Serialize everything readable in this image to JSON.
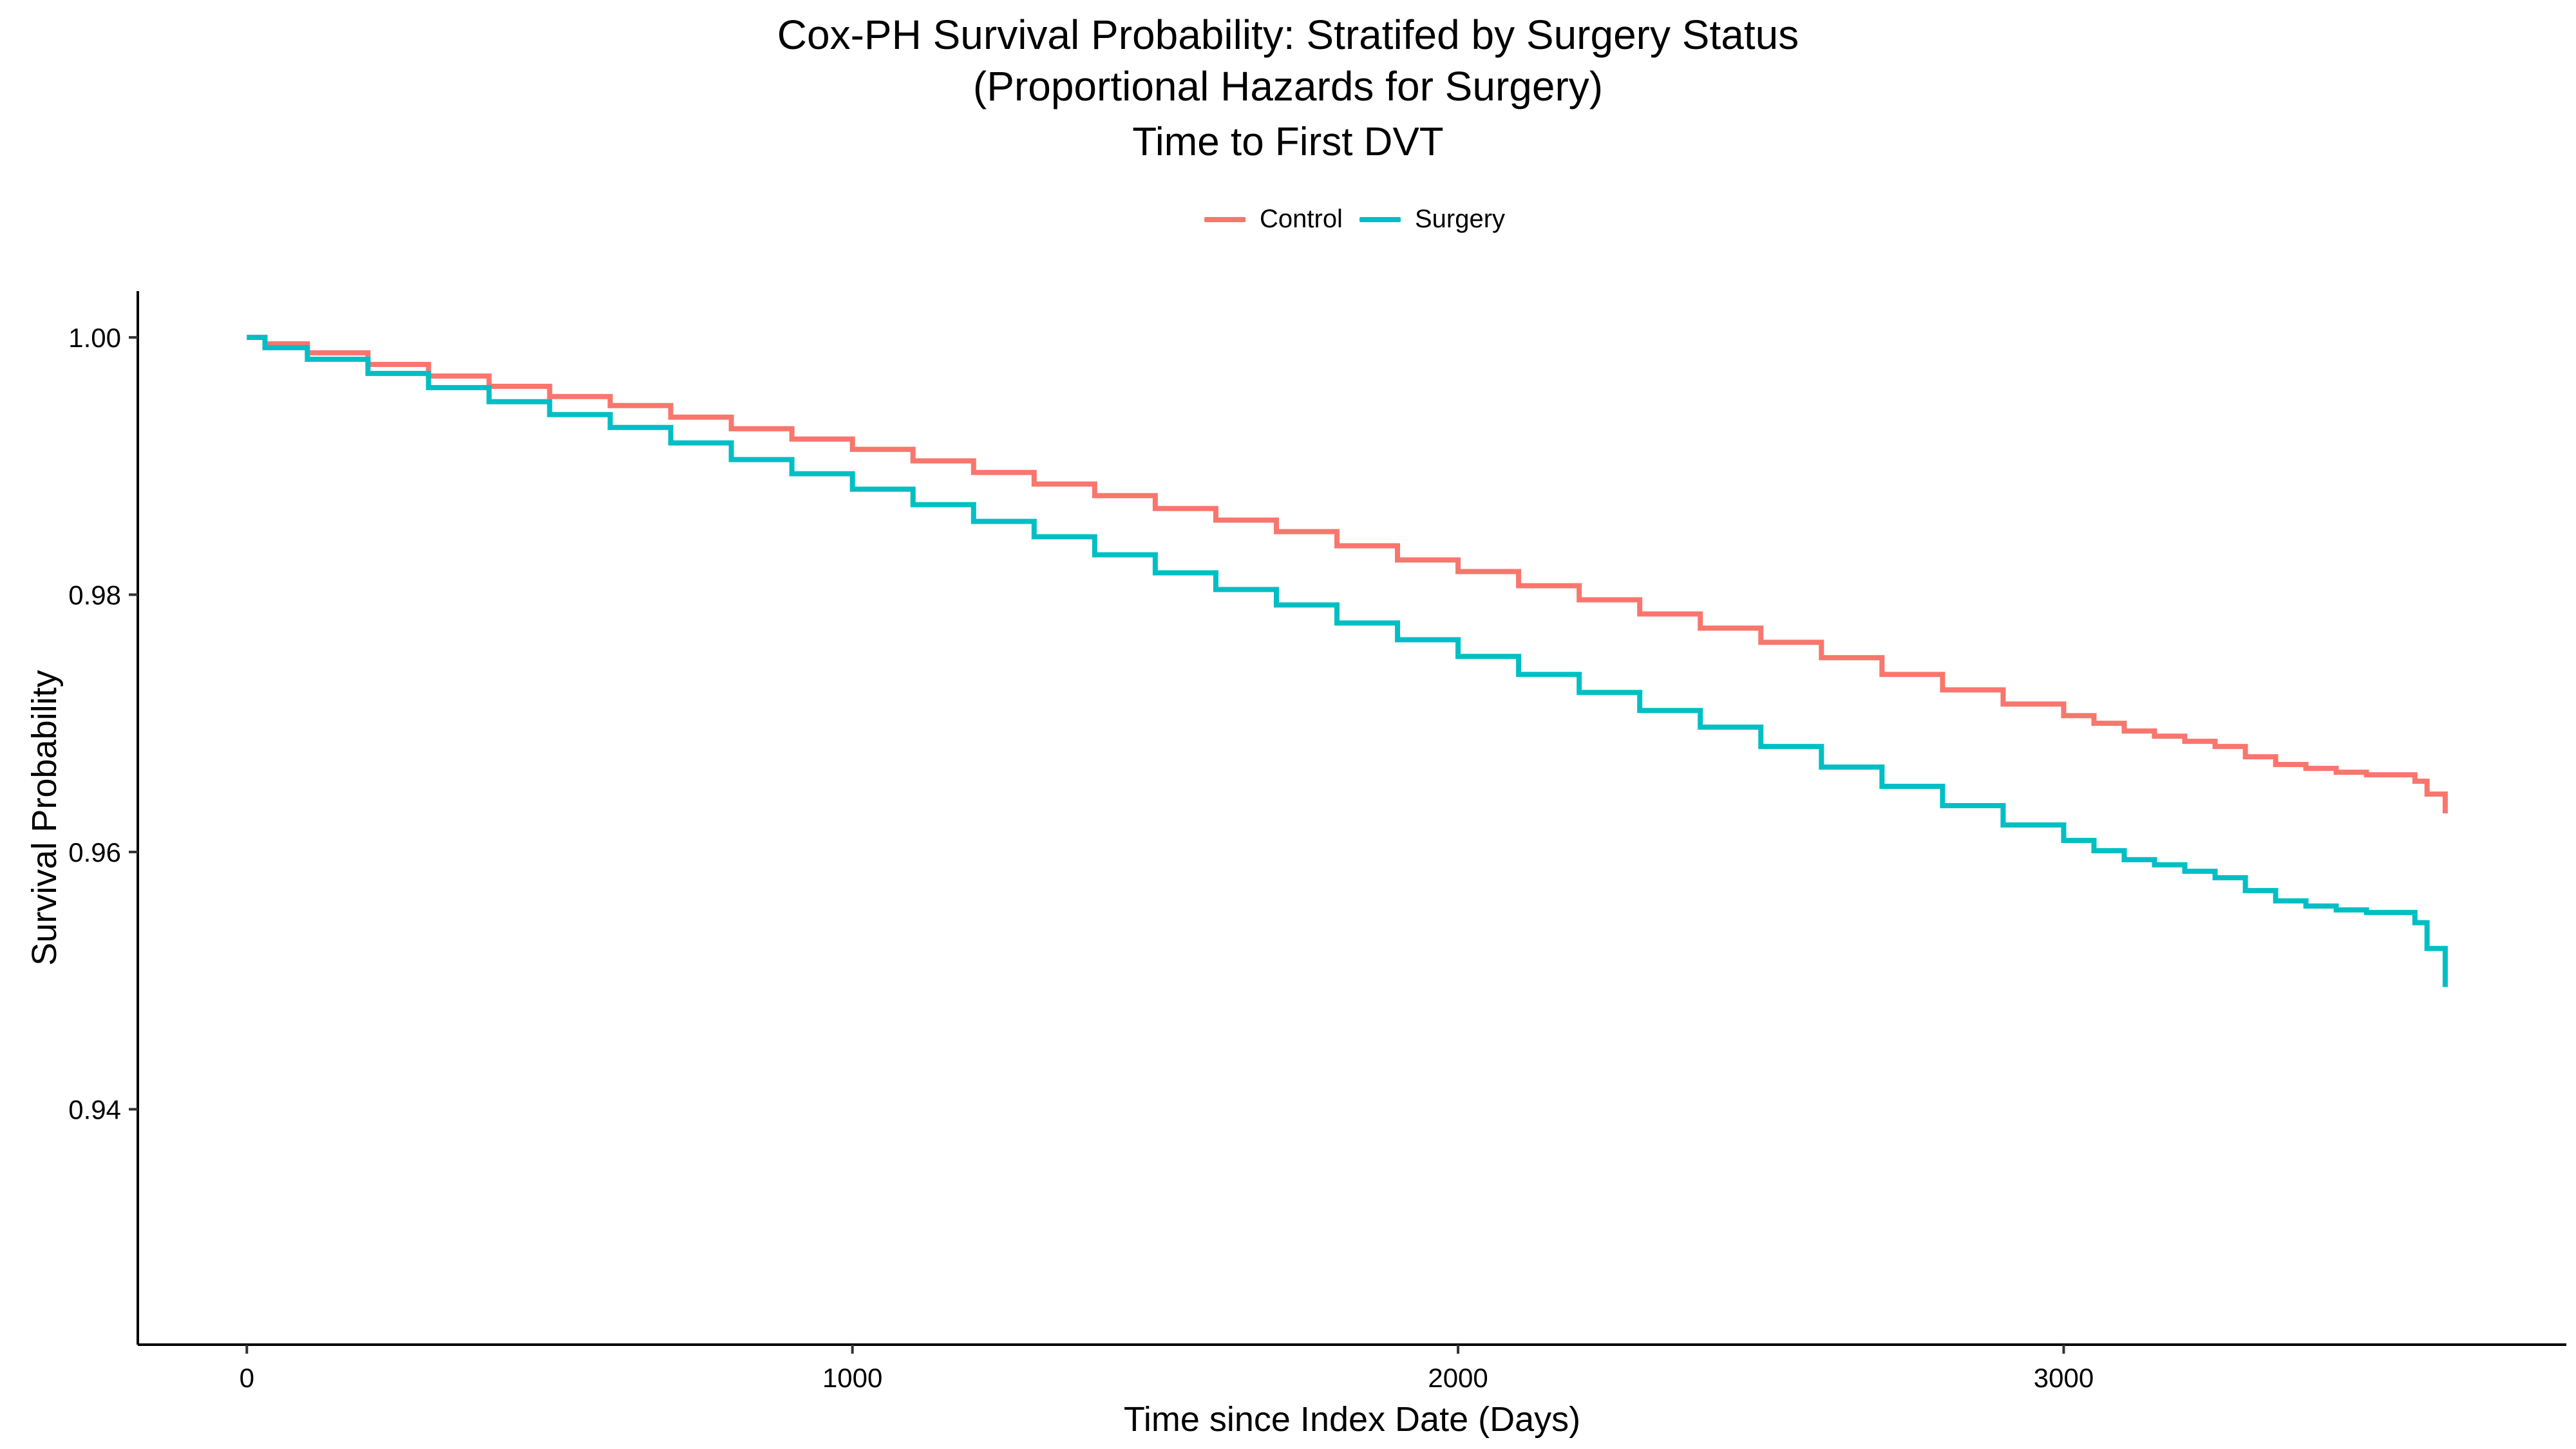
{
  "chart_data": {
    "type": "line",
    "title": "Cox-PH Survival Probability: Stratifed by Surgery Status",
    "subtitle": "(Proportional Hazards for Surgery)",
    "subtitle2": "Time to First DVT",
    "xlabel": "Time since Index Date (Days)",
    "ylabel": "Survival Probability",
    "xlim": [
      -180,
      3830
    ],
    "ylim": [
      0.9217,
      1.0036
    ],
    "x_ticks": [
      0,
      1000,
      2000,
      3000
    ],
    "x_tick_labels": [
      "0",
      "1000",
      "2000",
      "3000"
    ],
    "y_ticks": [
      0.94,
      0.96,
      0.98,
      1.0
    ],
    "y_tick_labels": [
      "0.94",
      "0.96",
      "0.98",
      "1.00"
    ],
    "grid": false,
    "legend_position": "top",
    "series": [
      {
        "name": "Control",
        "color": "#F8766D",
        "x": [
          0,
          30,
          100,
          200,
          300,
          400,
          500,
          600,
          700,
          800,
          900,
          1000,
          1100,
          1200,
          1300,
          1400,
          1500,
          1600,
          1700,
          1800,
          1900,
          2000,
          2100,
          2200,
          2300,
          2400,
          2500,
          2600,
          2700,
          2800,
          2900,
          3000,
          3050,
          3100,
          3150,
          3200,
          3250,
          3300,
          3350,
          3400,
          3450,
          3500,
          3550,
          3580,
          3600,
          3620,
          3630
        ],
        "y": [
          1.0,
          0.9995,
          0.9988,
          0.9979,
          0.997,
          0.9962,
          0.9954,
          0.9947,
          0.9938,
          0.9929,
          0.9921,
          0.9913,
          0.9904,
          0.9895,
          0.9886,
          0.9877,
          0.9867,
          0.9858,
          0.9849,
          0.9838,
          0.9827,
          0.9818,
          0.9807,
          0.9796,
          0.9785,
          0.9774,
          0.9763,
          0.9751,
          0.9738,
          0.9726,
          0.9715,
          0.9706,
          0.97,
          0.9694,
          0.969,
          0.9686,
          0.9682,
          0.9674,
          0.9668,
          0.9665,
          0.9662,
          0.966,
          0.966,
          0.9655,
          0.9645,
          0.9645,
          0.963
        ]
      },
      {
        "name": "Surgery",
        "color": "#00BFC4",
        "x": [
          0,
          30,
          100,
          200,
          300,
          400,
          500,
          600,
          700,
          800,
          900,
          1000,
          1100,
          1200,
          1300,
          1400,
          1500,
          1600,
          1700,
          1800,
          1900,
          2000,
          2100,
          2200,
          2300,
          2400,
          2500,
          2600,
          2700,
          2800,
          2900,
          3000,
          3050,
          3100,
          3150,
          3200,
          3250,
          3300,
          3350,
          3400,
          3450,
          3500,
          3550,
          3580,
          3600,
          3620,
          3630
        ],
        "y": [
          1.0,
          0.9992,
          0.9983,
          0.9972,
          0.9961,
          0.995,
          0.994,
          0.993,
          0.9918,
          0.9905,
          0.9894,
          0.9882,
          0.987,
          0.9857,
          0.9845,
          0.9831,
          0.9817,
          0.9804,
          0.9792,
          0.9778,
          0.9765,
          0.9752,
          0.9738,
          0.9724,
          0.971,
          0.9697,
          0.9682,
          0.9666,
          0.9651,
          0.9636,
          0.9621,
          0.9609,
          0.9601,
          0.9594,
          0.959,
          0.9585,
          0.958,
          0.957,
          0.9562,
          0.9558,
          0.9555,
          0.9553,
          0.9553,
          0.9545,
          0.9525,
          0.9525,
          0.9495
        ]
      }
    ]
  }
}
